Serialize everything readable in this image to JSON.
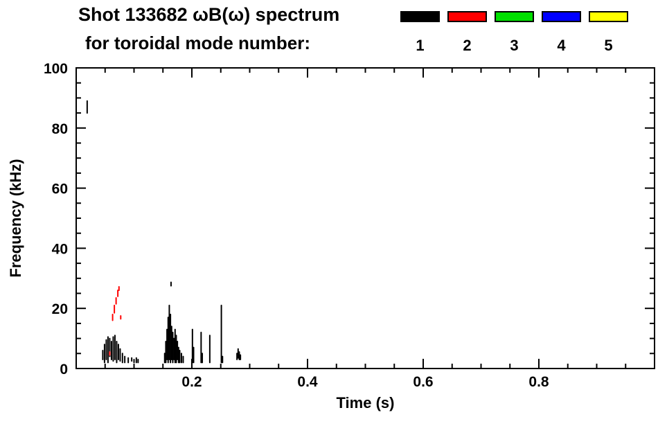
{
  "title": {
    "line1": "Shot 133682 ωB(ω) spectrum",
    "line2": "for toroidal mode number:"
  },
  "legend": {
    "items": [
      {
        "label": "1",
        "color": "#000000"
      },
      {
        "label": "2",
        "color": "#ff0000"
      },
      {
        "label": "3",
        "color": "#00e000"
      },
      {
        "label": "4",
        "color": "#0000ff"
      },
      {
        "label": "5",
        "color": "#ffff00"
      }
    ]
  },
  "chart_data": {
    "type": "scatter",
    "title": "Shot 133682 ωB(ω) spectrum for toroidal mode number:",
    "xlabel": "Time (s)",
    "ylabel": "Frequency (kHz)",
    "xlim": [
      0.0,
      1.0
    ],
    "ylim": [
      0,
      100
    ],
    "grid": false,
    "legend_position": "top-right",
    "xticks": {
      "major": [
        0.2,
        0.4,
        0.6,
        0.8
      ],
      "labels": [
        "0.2",
        "0.4",
        "0.6",
        "0.8"
      ],
      "minor_step": 0.05
    },
    "yticks": {
      "major": [
        0,
        20,
        40,
        60,
        80,
        100
      ],
      "labels": [
        "0",
        "20",
        "40",
        "60",
        "80",
        "100"
      ],
      "minor_step": 5
    },
    "segment_format": "[time_s, freq_low_kHz, freq_high_kHz]",
    "series": [
      {
        "name": "n=1",
        "color": "#000000",
        "segments": [
          [
            0.019,
            85,
            89
          ],
          [
            0.046,
            3,
            6
          ],
          [
            0.049,
            2,
            8
          ],
          [
            0.052,
            3,
            9.5
          ],
          [
            0.055,
            2,
            10.5
          ],
          [
            0.058,
            4,
            10
          ],
          [
            0.061,
            3,
            9
          ],
          [
            0.064,
            2.5,
            10.5
          ],
          [
            0.067,
            3,
            11
          ],
          [
            0.07,
            2,
            9
          ],
          [
            0.073,
            3,
            8
          ],
          [
            0.076,
            2.5,
            6.5
          ],
          [
            0.08,
            2,
            5
          ],
          [
            0.084,
            2,
            4
          ],
          [
            0.09,
            2,
            3.5
          ],
          [
            0.096,
            2.5,
            3.5
          ],
          [
            0.1,
            2,
            3
          ],
          [
            0.104,
            2,
            3.5
          ],
          [
            0.107,
            2,
            3
          ],
          [
            0.153,
            2,
            5
          ],
          [
            0.155,
            2,
            9
          ],
          [
            0.157,
            3,
            13
          ],
          [
            0.159,
            2,
            17
          ],
          [
            0.161,
            3,
            21
          ],
          [
            0.163,
            2,
            18
          ],
          [
            0.164,
            27.5,
            28.7
          ],
          [
            0.165,
            3,
            14
          ],
          [
            0.167,
            2,
            12
          ],
          [
            0.169,
            3,
            10
          ],
          [
            0.171,
            2,
            13
          ],
          [
            0.173,
            2,
            11
          ],
          [
            0.175,
            3,
            9
          ],
          [
            0.177,
            2,
            7
          ],
          [
            0.179,
            2,
            6
          ],
          [
            0.182,
            2,
            5
          ],
          [
            0.185,
            2,
            4
          ],
          [
            0.201,
            2,
            13
          ],
          [
            0.203,
            2,
            7
          ],
          [
            0.216,
            2,
            12
          ],
          [
            0.218,
            2,
            5
          ],
          [
            0.231,
            2,
            11
          ],
          [
            0.251,
            2,
            21
          ],
          [
            0.253,
            2,
            4
          ],
          [
            0.278,
            3,
            5
          ],
          [
            0.28,
            3.5,
            6.5
          ],
          [
            0.282,
            3,
            5.5
          ],
          [
            0.284,
            3,
            4.5
          ]
        ]
      },
      {
        "name": "n=2",
        "color": "#ff0000",
        "segments": [
          [
            0.058,
            4.5,
            5.5
          ],
          [
            0.063,
            16,
            18
          ],
          [
            0.066,
            18.5,
            21
          ],
          [
            0.069,
            21.5,
            23.5
          ],
          [
            0.072,
            24,
            26
          ],
          [
            0.074,
            26,
            27.2
          ],
          [
            0.077,
            16.5,
            17.5
          ]
        ]
      },
      {
        "name": "n=3",
        "color": "#00e000",
        "segments": []
      },
      {
        "name": "n=4",
        "color": "#0000ff",
        "segments": []
      },
      {
        "name": "n=5",
        "color": "#ffff00",
        "segments": []
      }
    ]
  }
}
